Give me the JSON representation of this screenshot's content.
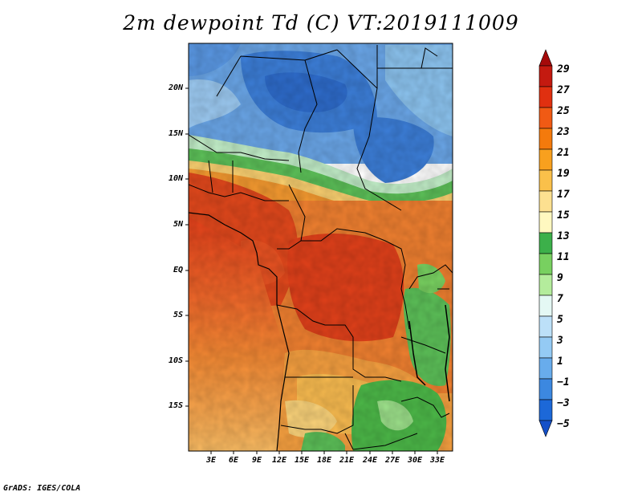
{
  "title": "2m dewpoint Td (C) VT:2019111009",
  "credit": "GrADS: IGES/COLA",
  "latitude_labels": [
    "20N",
    "15N",
    "10N",
    "5N",
    "EQ",
    "5S",
    "10S",
    "15S"
  ],
  "latitude_values": [
    20,
    15,
    10,
    5,
    0,
    -5,
    -10,
    -15
  ],
  "longitude_labels": [
    "3E",
    "6E",
    "9E",
    "12E",
    "15E",
    "18E",
    "21E",
    "24E",
    "27E",
    "30E",
    "33E"
  ],
  "longitude_values": [
    3,
    6,
    9,
    12,
    15,
    18,
    21,
    24,
    27,
    30,
    33
  ],
  "map_extent": {
    "lon_min": 0,
    "lon_max": 35,
    "lat_min": -20,
    "lat_max": 25
  },
  "colorbar": {
    "labels": [
      "29",
      "27",
      "25",
      "23",
      "21",
      "19",
      "17",
      "15",
      "13",
      "11",
      "9",
      "7",
      "5",
      "3",
      "1",
      "−1",
      "−3",
      "−5"
    ],
    "colors_top_to_bottom": [
      "#a50a0a",
      "#c41a10",
      "#e03010",
      "#f05a14",
      "#f47a0c",
      "#f8a01e",
      "#fac04a",
      "#fde090",
      "#fff8c0",
      "#3cb04a",
      "#78d060",
      "#b4ec9c",
      "#e4f8f4",
      "#bce0f8",
      "#94caf4",
      "#68acec",
      "#3c88e0",
      "#1c68d8",
      "#1450c8"
    ]
  },
  "colors": {
    "dry_blue": "#4a8ee0",
    "light_blue": "#8cc4f0",
    "green": "#4cb848",
    "yellow": "#fbd070",
    "orange": "#f49a2c",
    "red_orange": "#ee5e1c",
    "red": "#e2381a"
  }
}
